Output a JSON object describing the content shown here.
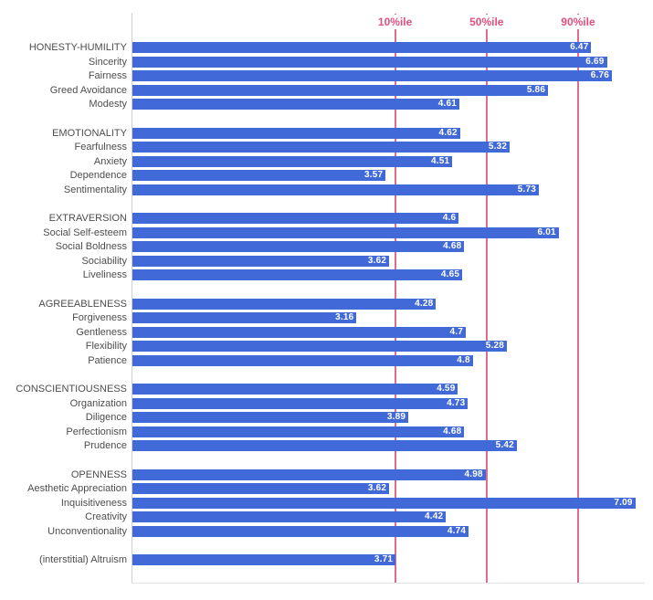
{
  "chart_data": {
    "type": "bar",
    "orientation": "horizontal",
    "title": "",
    "legend": "none",
    "value_range": [
      0,
      7.35
    ],
    "percentile_lines": [
      {
        "label": "10%ile",
        "value": 3.71
      },
      {
        "label": "50%ile",
        "value": 5.0
      },
      {
        "label": "90%ile",
        "value": 6.29
      }
    ],
    "groups": [
      {
        "name": "honesty-humility",
        "rows": [
          {
            "label": "HONESTY-HUMILITY",
            "value": 6.47
          },
          {
            "label": "Sincerity",
            "value": 6.69
          },
          {
            "label": "Fairness",
            "value": 6.76
          },
          {
            "label": "Greed Avoidance",
            "value": 5.86
          },
          {
            "label": "Modesty",
            "value": 4.61
          }
        ]
      },
      {
        "name": "emotionality",
        "rows": [
          {
            "label": "EMOTIONALITY",
            "value": 4.62
          },
          {
            "label": "Fearfulness",
            "value": 5.32
          },
          {
            "label": "Anxiety",
            "value": 4.51
          },
          {
            "label": "Dependence",
            "value": 3.57
          },
          {
            "label": "Sentimentality",
            "value": 5.73
          }
        ]
      },
      {
        "name": "extraversion",
        "rows": [
          {
            "label": "EXTRAVERSION",
            "value": 4.6
          },
          {
            "label": "Social Self-esteem",
            "value": 6.01
          },
          {
            "label": "Social Boldness",
            "value": 4.68
          },
          {
            "label": "Sociability",
            "value": 3.62
          },
          {
            "label": "Liveliness",
            "value": 4.65
          }
        ]
      },
      {
        "name": "agreeableness",
        "rows": [
          {
            "label": "AGREEABLENESS",
            "value": 4.28
          },
          {
            "label": "Forgiveness",
            "value": 3.16
          },
          {
            "label": "Gentleness",
            "value": 4.7
          },
          {
            "label": "Flexibility",
            "value": 5.28
          },
          {
            "label": "Patience",
            "value": 4.8
          }
        ]
      },
      {
        "name": "conscientiousness",
        "rows": [
          {
            "label": "CONSCIENTIOUSNESS",
            "value": 4.59
          },
          {
            "label": "Organization",
            "value": 4.73
          },
          {
            "label": "Diligence",
            "value": 3.89
          },
          {
            "label": "Perfectionism",
            "value": 4.68
          },
          {
            "label": "Prudence",
            "value": 5.42
          }
        ]
      },
      {
        "name": "openness",
        "rows": [
          {
            "label": "OPENNESS",
            "value": 4.98
          },
          {
            "label": "Aesthetic Appreciation",
            "value": 3.62
          },
          {
            "label": "Inquisitiveness",
            "value": 7.09
          },
          {
            "label": "Creativity",
            "value": 4.42
          },
          {
            "label": "Unconventionality",
            "value": 4.74
          }
        ]
      },
      {
        "name": "interstitial",
        "rows": [
          {
            "label": "(interstitial) Altruism",
            "value": 3.71
          }
        ]
      }
    ],
    "colors": {
      "bar": "#4169D8",
      "percentile_line": "#E26A8C",
      "percentile_label": "#E0507E",
      "row_label_text": "#4D4D4D",
      "value_label_text": "#FFFFFF",
      "axis_line": "#CFCFCF"
    }
  }
}
